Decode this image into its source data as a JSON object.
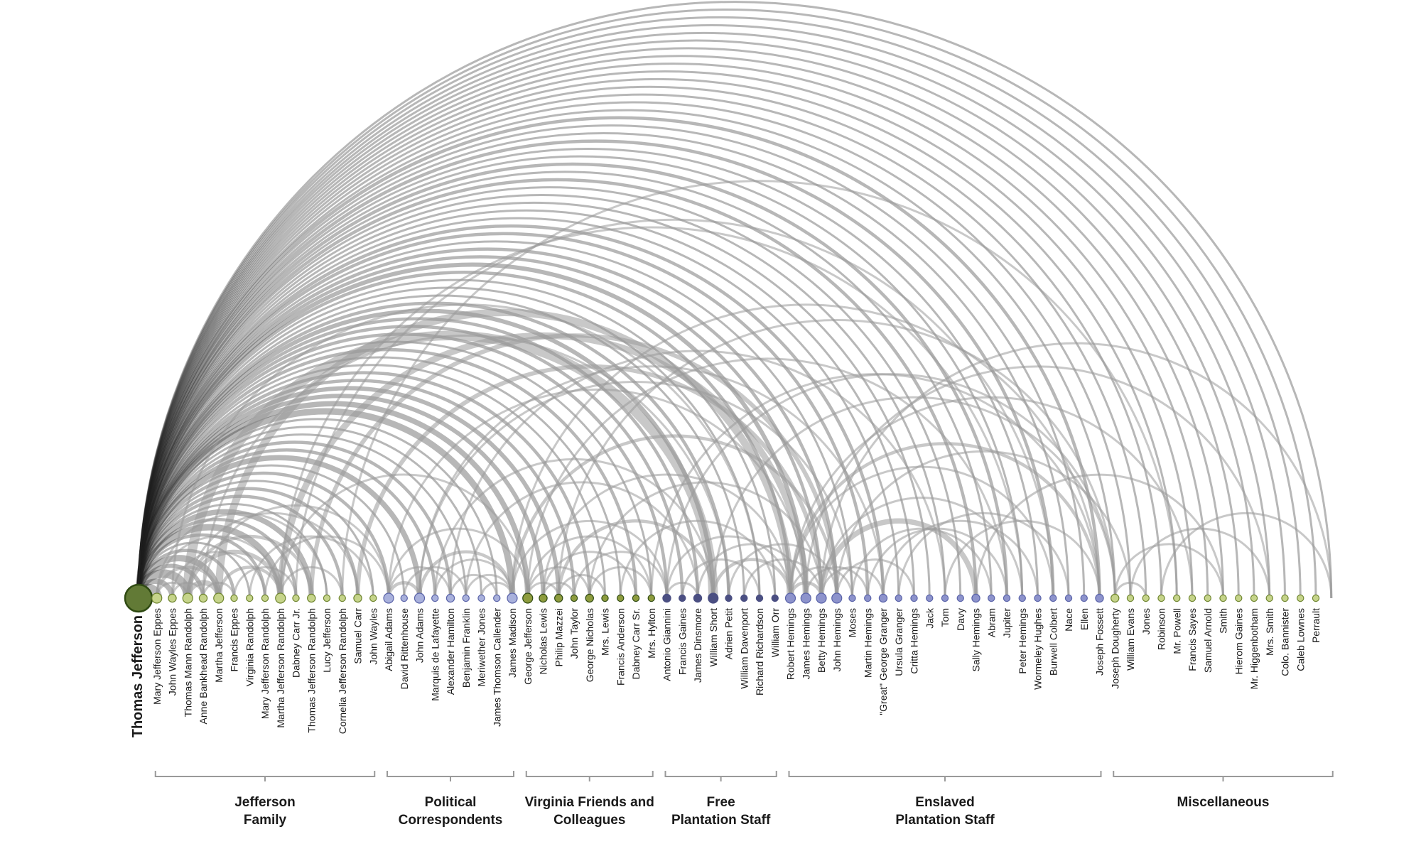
{
  "diagram": {
    "type": "arc-diagram",
    "colors": {
      "arc": "#9a9a9a",
      "arc_hub": "#1e1e1e",
      "family_node": "#c6d48a",
      "family_node_stroke": "#6f8530",
      "jefferson_node": "#627a36",
      "jefferson_node_stroke": "#2f4a12",
      "political_node": "#a9b1dc",
      "political_node_stroke": "#5a63a8",
      "friend_node": "#8e9c3e",
      "staff_node": "#4b4f82",
      "enslaved_node": "#8d93cc",
      "misc_node": "#c6d48a",
      "bracket": "#9a9a9a"
    }
  },
  "nodes": [
    {
      "name": "Thomas Jefferson",
      "group": "jefferson"
    },
    {
      "name": "Mary Jefferson Eppes",
      "group": "family"
    },
    {
      "name": "John Wayles Eppes",
      "group": "family"
    },
    {
      "name": "Thomas Mann Randolph",
      "group": "family"
    },
    {
      "name": "Anne Bankhead Randolph",
      "group": "family"
    },
    {
      "name": "Martha Jefferson",
      "group": "family"
    },
    {
      "name": "Francis Eppes",
      "group": "family"
    },
    {
      "name": "Virginia Randolph",
      "group": "family"
    },
    {
      "name": "Mary Jefferson Randolph",
      "group": "family"
    },
    {
      "name": "Martha Jefferson Randolph",
      "group": "family"
    },
    {
      "name": "Dabney Carr Jr.",
      "group": "family"
    },
    {
      "name": "Thomas Jefferson Randolph",
      "group": "family"
    },
    {
      "name": "Lucy Jefferson",
      "group": "family"
    },
    {
      "name": "Cornelia Jefferson Randolph",
      "group": "family"
    },
    {
      "name": "Samuel Carr",
      "group": "family"
    },
    {
      "name": "John Wayles",
      "group": "family"
    },
    {
      "name": "Abigail Adams",
      "group": "political"
    },
    {
      "name": "David Rittenhouse",
      "group": "political"
    },
    {
      "name": "John Adams",
      "group": "political"
    },
    {
      "name": "Marquis de Lafayette",
      "group": "political"
    },
    {
      "name": "Alexander Hamilton",
      "group": "political"
    },
    {
      "name": "Benjamin Franklin",
      "group": "political"
    },
    {
      "name": "Meriwether Jones",
      "group": "political"
    },
    {
      "name": "James Thomson Callender",
      "group": "political"
    },
    {
      "name": "James Madison",
      "group": "political"
    },
    {
      "name": "George Jefferson",
      "group": "friend"
    },
    {
      "name": "Nicholas Lewis",
      "group": "friend"
    },
    {
      "name": "Philip Mazzei",
      "group": "friend"
    },
    {
      "name": "John Taylor",
      "group": "friend"
    },
    {
      "name": "George Nicholas",
      "group": "friend"
    },
    {
      "name": "Mrs. Lewis",
      "group": "friend"
    },
    {
      "name": "Francis Anderson",
      "group": "friend"
    },
    {
      "name": "Dabney Carr Sr.",
      "group": "friend"
    },
    {
      "name": "Mrs. Hylton",
      "group": "friend"
    },
    {
      "name": "Antonio Giannini",
      "group": "staff"
    },
    {
      "name": "Francis Gaines",
      "group": "staff"
    },
    {
      "name": "James Dinsmore",
      "group": "staff"
    },
    {
      "name": "William Short",
      "group": "staff"
    },
    {
      "name": "Adrien Petit",
      "group": "staff"
    },
    {
      "name": "William Davenport",
      "group": "staff"
    },
    {
      "name": "Richard Richardson",
      "group": "staff"
    },
    {
      "name": "William Orr",
      "group": "staff"
    },
    {
      "name": "Robert Hemings",
      "group": "enslaved"
    },
    {
      "name": "James Hemings",
      "group": "enslaved"
    },
    {
      "name": "Betty Hemings",
      "group": "enslaved"
    },
    {
      "name": "John Hemings",
      "group": "enslaved"
    },
    {
      "name": "Moses",
      "group": "enslaved"
    },
    {
      "name": "Martin Hemings",
      "group": "enslaved"
    },
    {
      "name": "\"Great\" George Granger",
      "group": "enslaved"
    },
    {
      "name": "Ursula Granger",
      "group": "enslaved"
    },
    {
      "name": "Critta Hemings",
      "group": "enslaved"
    },
    {
      "name": "Jack",
      "group": "enslaved"
    },
    {
      "name": "Tom",
      "group": "enslaved"
    },
    {
      "name": "Davy",
      "group": "enslaved"
    },
    {
      "name": "Sally Hemings",
      "group": "enslaved"
    },
    {
      "name": "Abram",
      "group": "enslaved"
    },
    {
      "name": "Jupiter",
      "group": "enslaved"
    },
    {
      "name": "Peter Hemings",
      "group": "enslaved"
    },
    {
      "name": "Wormeley Hughes",
      "group": "enslaved"
    },
    {
      "name": "Burwell Colbert",
      "group": "enslaved"
    },
    {
      "name": "Nace",
      "group": "enslaved"
    },
    {
      "name": "Ellen",
      "group": "enslaved"
    },
    {
      "name": "Joseph Fossett",
      "group": "enslaved"
    },
    {
      "name": "Joseph Dougherty",
      "group": "misc"
    },
    {
      "name": "William Evans",
      "group": "misc"
    },
    {
      "name": "Jones",
      "group": "misc"
    },
    {
      "name": "Robinson",
      "group": "misc"
    },
    {
      "name": "Mr. Powell",
      "group": "misc"
    },
    {
      "name": "Francis Sayes",
      "group": "misc"
    },
    {
      "name": "Samuel Arnold",
      "group": "misc"
    },
    {
      "name": "Smith",
      "group": "misc"
    },
    {
      "name": "Hierom Gaines",
      "group": "misc"
    },
    {
      "name": "Mr. Higgenbotham",
      "group": "misc"
    },
    {
      "name": "Mrs. Smith",
      "group": "misc"
    },
    {
      "name": "Colo. Bannister",
      "group": "misc"
    },
    {
      "name": "Caleb Lownes",
      "group": "misc"
    },
    {
      "name": "Perrault",
      "group": "misc"
    }
  ],
  "groups": [
    {
      "id": "family",
      "line1": "Jefferson",
      "line2": "Family",
      "first": 1,
      "last": 15
    },
    {
      "id": "political",
      "line1": "Political",
      "line2": "Correspondents",
      "first": 16,
      "last": 24
    },
    {
      "id": "friend",
      "line1": "Virginia Friends and",
      "line2": "Colleagues",
      "first": 25,
      "last": 33
    },
    {
      "id": "staff",
      "line1": "Free",
      "line2": "Plantation Staff",
      "first": 34,
      "last": 41
    },
    {
      "id": "enslaved",
      "line1": "Enslaved",
      "line2": "Plantation Staff",
      "first": 42,
      "last": 62
    },
    {
      "id": "misc",
      "line1": "Miscellaneous",
      "line2": "",
      "first": 63,
      "last": 77
    }
  ],
  "links": [
    [
      0,
      1,
      10
    ],
    [
      0,
      2,
      5
    ],
    [
      0,
      3,
      8
    ],
    [
      0,
      4,
      4
    ],
    [
      0,
      5,
      6
    ],
    [
      0,
      6,
      3
    ],
    [
      0,
      7,
      2
    ],
    [
      0,
      8,
      3
    ],
    [
      0,
      9,
      6
    ],
    [
      0,
      10,
      3
    ],
    [
      0,
      11,
      5
    ],
    [
      0,
      12,
      2
    ],
    [
      0,
      13,
      3
    ],
    [
      0,
      14,
      3
    ],
    [
      0,
      15,
      2
    ],
    [
      0,
      16,
      3
    ],
    [
      0,
      17,
      2
    ],
    [
      0,
      18,
      5
    ],
    [
      0,
      19,
      3
    ],
    [
      0,
      20,
      3
    ],
    [
      0,
      21,
      2
    ],
    [
      0,
      22,
      2
    ],
    [
      0,
      23,
      2
    ],
    [
      0,
      24,
      6
    ],
    [
      0,
      25,
      5
    ],
    [
      0,
      26,
      4
    ],
    [
      0,
      27,
      4
    ],
    [
      0,
      28,
      3
    ],
    [
      0,
      29,
      3
    ],
    [
      0,
      30,
      2
    ],
    [
      0,
      31,
      2
    ],
    [
      0,
      32,
      3
    ],
    [
      0,
      33,
      2
    ],
    [
      0,
      34,
      3
    ],
    [
      0,
      35,
      3
    ],
    [
      0,
      36,
      3
    ],
    [
      0,
      37,
      4
    ],
    [
      0,
      38,
      3
    ],
    [
      0,
      39,
      2
    ],
    [
      0,
      40,
      2
    ],
    [
      0,
      41,
      2
    ],
    [
      0,
      42,
      3
    ],
    [
      0,
      43,
      4
    ],
    [
      0,
      44,
      3
    ],
    [
      0,
      45,
      3
    ],
    [
      0,
      46,
      2
    ],
    [
      0,
      47,
      3
    ],
    [
      0,
      48,
      3
    ],
    [
      0,
      49,
      2
    ],
    [
      0,
      50,
      2
    ],
    [
      0,
      51,
      2
    ],
    [
      0,
      52,
      2
    ],
    [
      0,
      53,
      2
    ],
    [
      0,
      54,
      3
    ],
    [
      0,
      55,
      2
    ],
    [
      0,
      56,
      3
    ],
    [
      0,
      57,
      2
    ],
    [
      0,
      58,
      2
    ],
    [
      0,
      59,
      3
    ],
    [
      0,
      60,
      2
    ],
    [
      0,
      61,
      2
    ],
    [
      0,
      62,
      3
    ],
    [
      0,
      63,
      2
    ],
    [
      0,
      64,
      2
    ],
    [
      0,
      65,
      2
    ],
    [
      0,
      66,
      2
    ],
    [
      0,
      67,
      2
    ],
    [
      0,
      68,
      2
    ],
    [
      0,
      69,
      2
    ],
    [
      0,
      70,
      2
    ],
    [
      0,
      71,
      2
    ],
    [
      0,
      72,
      2
    ],
    [
      0,
      73,
      2
    ],
    [
      0,
      74,
      2
    ],
    [
      0,
      75,
      2
    ],
    [
      0,
      76,
      2
    ],
    [
      0,
      77,
      2
    ],
    [
      1,
      3,
      2
    ],
    [
      1,
      5,
      3
    ],
    [
      1,
      9,
      2
    ],
    [
      1,
      12,
      2
    ],
    [
      2,
      4,
      2
    ],
    [
      2,
      8,
      2
    ],
    [
      3,
      5,
      5
    ],
    [
      3,
      9,
      4
    ],
    [
      3,
      11,
      3
    ],
    [
      3,
      14,
      2
    ],
    [
      4,
      6,
      2
    ],
    [
      4,
      16,
      2
    ],
    [
      5,
      9,
      3
    ],
    [
      6,
      10,
      2
    ],
    [
      7,
      15,
      2
    ],
    [
      8,
      16,
      2
    ],
    [
      9,
      13,
      2
    ],
    [
      9,
      25,
      2
    ],
    [
      16,
      18,
      3
    ],
    [
      16,
      20,
      2
    ],
    [
      17,
      21,
      2
    ],
    [
      18,
      24,
      3
    ],
    [
      19,
      24,
      2
    ],
    [
      20,
      23,
      2
    ],
    [
      21,
      24,
      2
    ],
    [
      22,
      24,
      2
    ],
    [
      25,
      27,
      2
    ],
    [
      25,
      29,
      2
    ],
    [
      25,
      33,
      2
    ],
    [
      26,
      28,
      2
    ],
    [
      26,
      32,
      2
    ],
    [
      27,
      30,
      2
    ],
    [
      28,
      34,
      2
    ],
    [
      29,
      33,
      2
    ],
    [
      34,
      36,
      2
    ],
    [
      34,
      42,
      2
    ],
    [
      35,
      40,
      2
    ],
    [
      36,
      43,
      2
    ],
    [
      37,
      42,
      3
    ],
    [
      38,
      45,
      2
    ],
    [
      39,
      44,
      2
    ],
    [
      42,
      44,
      3
    ],
    [
      42,
      46,
      2
    ],
    [
      42,
      62,
      3
    ],
    [
      43,
      47,
      2
    ],
    [
      44,
      48,
      2
    ],
    [
      44,
      54,
      5
    ],
    [
      45,
      50,
      2
    ],
    [
      46,
      55,
      2
    ],
    [
      47,
      56,
      2
    ],
    [
      48,
      58,
      2
    ],
    [
      49,
      60,
      2
    ],
    [
      52,
      62,
      2
    ],
    [
      63,
      65,
      2
    ],
    [
      63,
      70,
      2
    ],
    [
      64,
      73,
      2
    ],
    [
      66,
      77,
      2
    ],
    [
      3,
      37,
      9
    ],
    [
      5,
      42,
      7
    ],
    [
      9,
      43,
      6
    ],
    [
      14,
      44,
      4
    ],
    [
      11,
      45,
      4
    ],
    [
      24,
      45,
      3
    ],
    [
      18,
      46,
      2
    ],
    [
      16,
      43,
      2
    ],
    [
      18,
      48,
      2
    ],
    [
      20,
      52,
      2
    ],
    [
      24,
      62,
      2
    ],
    [
      25,
      56,
      2
    ],
    [
      27,
      63,
      2
    ],
    [
      33,
      62,
      2
    ],
    [
      34,
      63,
      2
    ],
    [
      37,
      63,
      2
    ],
    [
      42,
      68,
      2
    ],
    [
      43,
      73,
      2
    ],
    [
      44,
      77,
      2
    ],
    [
      9,
      57,
      2
    ],
    [
      10,
      59,
      2
    ],
    [
      13,
      67,
      2
    ],
    [
      2,
      40,
      2
    ],
    [
      4,
      38,
      2
    ],
    [
      16,
      25,
      2
    ],
    [
      24,
      34,
      2
    ],
    [
      26,
      42,
      2
    ],
    [
      29,
      44,
      2
    ],
    [
      31,
      41,
      2
    ],
    [
      27,
      37,
      3
    ],
    [
      19,
      37,
      2
    ],
    [
      21,
      36,
      2
    ],
    [
      42,
      59,
      2
    ],
    [
      44,
      57,
      2
    ],
    [
      45,
      64,
      2
    ],
    [
      54,
      70,
      2
    ]
  ]
}
